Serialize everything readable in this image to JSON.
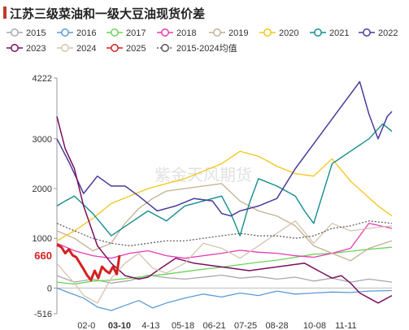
{
  "title": "江苏三级菜油和一级大豆油现货价差",
  "watermark": "紫金天风期货",
  "chart_data": {
    "type": "line",
    "title": "江苏三级菜油和一级大豆油现货价差",
    "ylim": [
      -516,
      4222
    ],
    "yticks": [
      {
        "value": 4222,
        "label": "4222"
      },
      {
        "value": 3000,
        "label": "3000"
      },
      {
        "value": 2000,
        "label": "2000"
      },
      {
        "value": 1000,
        "label": "1000"
      },
      {
        "value": 0,
        "label": "0"
      },
      {
        "value": -516,
        "label": "-516"
      }
    ],
    "xlim": [
      1,
      365
    ],
    "xticks": [
      {
        "day": 33,
        "label": "02-0",
        "highlight": false
      },
      {
        "day": 69,
        "label": "03-10",
        "highlight": true
      },
      {
        "day": 103,
        "label": "4-13",
        "highlight": false
      },
      {
        "day": 138,
        "label": "05-18",
        "highlight": false
      },
      {
        "day": 172,
        "label": "06-21",
        "highlight": false
      },
      {
        "day": 206,
        "label": "07-25",
        "highlight": false
      },
      {
        "day": 240,
        "label": "08-28",
        "highlight": false
      },
      {
        "day": 281,
        "label": "10-08",
        "highlight": false
      },
      {
        "day": 315,
        "label": "11-11",
        "highlight": false
      }
    ],
    "current_value_label": "660",
    "grid": false,
    "legend_position": "top",
    "series": [
      {
        "name": "2015",
        "color": "#a9a9a9",
        "dash": false,
        "width": 1.3,
        "x": [
          1,
          20,
          40,
          60,
          80,
          100,
          120,
          140,
          160,
          180,
          200,
          220,
          240,
          260,
          280,
          300,
          320,
          340,
          365
        ],
        "y": [
          250,
          120,
          180,
          100,
          150,
          260,
          210,
          180,
          220,
          260,
          200,
          230,
          180,
          220,
          140,
          200,
          120,
          180,
          120
        ]
      },
      {
        "name": "2016",
        "color": "#5b9bd5",
        "dash": false,
        "width": 1.3,
        "x": [
          1,
          15,
          30,
          45,
          60,
          75,
          90,
          105,
          120,
          140,
          160,
          180,
          200,
          220,
          240,
          260,
          280,
          300,
          320,
          340,
          365
        ],
        "y": [
          0,
          -100,
          -200,
          -380,
          -450,
          -350,
          -250,
          -400,
          -300,
          -200,
          -120,
          -180,
          -100,
          -150,
          -60,
          -120,
          -100,
          -80,
          -90,
          -60,
          -50
        ]
      },
      {
        "name": "2017",
        "color": "#6ad45a",
        "dash": false,
        "width": 1.3,
        "x": [
          1,
          20,
          40,
          60,
          80,
          100,
          120,
          140,
          160,
          180,
          200,
          220,
          240,
          260,
          280,
          300,
          320,
          340,
          365
        ],
        "y": [
          120,
          80,
          140,
          160,
          200,
          240,
          280,
          330,
          380,
          420,
          470,
          520,
          560,
          620,
          680,
          700,
          740,
          780,
          820
        ]
      },
      {
        "name": "2018",
        "color": "#e838b4",
        "dash": false,
        "width": 1.3,
        "x": [
          1,
          20,
          40,
          60,
          80,
          100,
          120,
          140,
          160,
          180,
          200,
          220,
          240,
          260,
          280,
          300,
          320,
          340,
          365
        ],
        "y": [
          900,
          750,
          650,
          600,
          700,
          750,
          650,
          600,
          650,
          700,
          760,
          720,
          700,
          650,
          620,
          700,
          800,
          1300,
          1200
        ]
      },
      {
        "name": "2019",
        "color": "#c3b091",
        "dash": false,
        "width": 1.3,
        "x": [
          1,
          20,
          40,
          60,
          75,
          90,
          105,
          120,
          140,
          160,
          180,
          200,
          220,
          240,
          260,
          280,
          300,
          320,
          340,
          365
        ],
        "y": [
          1150,
          1000,
          750,
          900,
          1300,
          1600,
          1800,
          1950,
          2000,
          2050,
          2100,
          1750,
          1550,
          1450,
          1250,
          850,
          700,
          550,
          800,
          950
        ]
      },
      {
        "name": "2020",
        "color": "#f5c518",
        "dash": false,
        "width": 1.3,
        "x": [
          1,
          20,
          40,
          60,
          80,
          100,
          120,
          140,
          160,
          180,
          200,
          210,
          220,
          240,
          260,
          280,
          300,
          320,
          335,
          350,
          365
        ],
        "y": [
          950,
          1150,
          1400,
          1700,
          1850,
          2000,
          2100,
          2200,
          2350,
          2500,
          2750,
          2700,
          2650,
          2450,
          2300,
          2250,
          2600,
          2150,
          1900,
          1650,
          1450
        ]
      },
      {
        "name": "2021",
        "color": "#138d8d",
        "dash": false,
        "width": 1.4,
        "x": [
          1,
          10,
          20,
          40,
          60,
          80,
          100,
          120,
          140,
          160,
          180,
          190,
          200,
          210,
          220,
          240,
          260,
          270,
          280,
          290,
          300,
          320,
          340,
          355,
          365
        ],
        "y": [
          1650,
          1750,
          1850,
          1500,
          1050,
          1300,
          1550,
          1350,
          1650,
          1750,
          1850,
          1500,
          1050,
          1700,
          2200,
          2050,
          1850,
          1550,
          1300,
          1900,
          2500,
          2750,
          3000,
          3300,
          3150
        ]
      },
      {
        "name": "2022",
        "color": "#4b3a9c",
        "dash": false,
        "width": 1.5,
        "x": [
          1,
          15,
          30,
          45,
          60,
          75,
          90,
          100,
          110,
          130,
          150,
          170,
          180,
          190,
          200,
          220,
          240,
          260,
          280,
          300,
          320,
          330,
          340,
          350,
          360,
          365
        ],
        "y": [
          3000,
          2500,
          1900,
          2250,
          2050,
          2050,
          1850,
          1700,
          1550,
          1650,
          1800,
          1750,
          1500,
          1450,
          1550,
          1650,
          1800,
          2400,
          2900,
          3400,
          3900,
          4150,
          3500,
          3000,
          3450,
          3550
        ]
      },
      {
        "name": "2023",
        "color": "#7b0f5f",
        "dash": false,
        "width": 1.5,
        "x": [
          1,
          10,
          20,
          30,
          45,
          60,
          75,
          90,
          100,
          110,
          130,
          150,
          170,
          190,
          210,
          230,
          250,
          270,
          290,
          300,
          310,
          320,
          330,
          340,
          350,
          365
        ],
        "y": [
          3450,
          2800,
          2400,
          1650,
          850,
          500,
          250,
          180,
          220,
          350,
          600,
          500,
          450,
          400,
          350,
          400,
          450,
          500,
          300,
          200,
          250,
          100,
          -100,
          -200,
          -300,
          -150
        ]
      },
      {
        "name": "2024",
        "color": "#d6c4b0",
        "dash": false,
        "width": 1.3,
        "x": [
          1,
          10,
          20,
          30,
          45,
          60,
          75,
          90,
          105,
          120,
          140,
          160,
          180,
          200,
          220,
          240,
          260,
          280,
          300,
          320,
          340,
          365
        ],
        "y": [
          500,
          300,
          100,
          -150,
          -300,
          200,
          500,
          700,
          400,
          300,
          500,
          900,
          800,
          600,
          850,
          1100,
          1350,
          900,
          1300,
          1150,
          1200,
          1250
        ]
      },
      {
        "name": "2025",
        "color": "#d42020",
        "dash": false,
        "width": 3,
        "x": [
          1,
          6,
          10,
          14,
          18,
          22,
          26,
          30,
          34,
          38,
          42,
          46,
          50,
          54,
          58,
          62,
          66,
          69
        ],
        "y": [
          870,
          820,
          700,
          780,
          660,
          620,
          500,
          380,
          250,
          160,
          350,
          200,
          430,
          350,
          300,
          430,
          280,
          660
        ]
      },
      {
        "name": "2015-2024均值",
        "color": "#555555",
        "dash": true,
        "width": 1.2,
        "x": [
          1,
          20,
          40,
          60,
          80,
          100,
          120,
          140,
          160,
          180,
          200,
          220,
          240,
          260,
          280,
          300,
          320,
          340,
          365
        ],
        "y": [
          1300,
          1150,
          1000,
          900,
          850,
          900,
          950,
          950,
          1000,
          1050,
          1100,
          1050,
          1050,
          1000,
          1050,
          1200,
          1250,
          1350,
          1300
        ]
      }
    ]
  }
}
